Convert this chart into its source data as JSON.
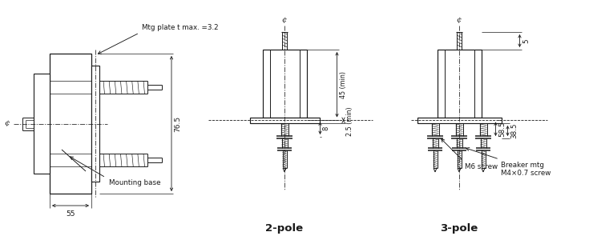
{
  "bg_color": "#ffffff",
  "line_color": "#1a1a1a",
  "annotations": {
    "mtg_plate": "Mtg plate t max. =3.2",
    "mounting_base": "Mounting base",
    "centerline_symbol": "¢",
    "dim_76_5": "76.5",
    "dim_55": "55",
    "dim_45_min": "45 (min)",
    "dim_25_min": "2.5 (min)",
    "dim_8": "8",
    "dim_5": "5",
    "dim_38_5": "38.5",
    "dim_58_5": "58.5",
    "label_2pole": "2-pole",
    "label_3pole": "3-pole",
    "m6_screw": "M6 screw",
    "breaker_mtg": "Breaker mtg\nM4×0.7 screw"
  }
}
